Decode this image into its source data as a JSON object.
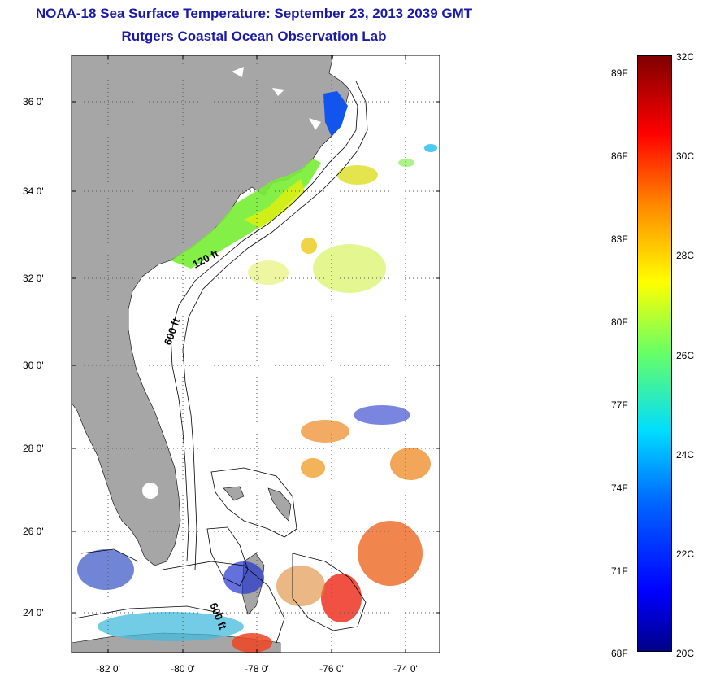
{
  "title": {
    "line1": "NOAA-18 Sea Surface Temperature:  September 23, 2013 2039 GMT",
    "line2": "Rutgers Coastal Ocean Observation Lab"
  },
  "map": {
    "lat_ticks": [
      "36 0'",
      "34 0'",
      "32 0'",
      "30 0'",
      "28 0'",
      "26 0'",
      "24 0'"
    ],
    "lon_ticks": [
      "-82 0'",
      "-80 0'",
      "-78 0'",
      "-76 0'",
      "-74 0'"
    ],
    "lat_range": [
      23,
      37
    ],
    "lon_range": [
      -83,
      -73
    ],
    "contour_labels": [
      "120 ft",
      "600 ft",
      "600 ft"
    ],
    "land_color": "#a6a6a6",
    "grid": "dotted"
  },
  "colorbar": {
    "f_labels": [
      "89F",
      "86F",
      "83F",
      "80F",
      "77F",
      "74F",
      "71F",
      "68F"
    ],
    "c_labels": [
      "32C",
      "30C",
      "28C",
      "26C",
      "24C",
      "22C",
      "20C"
    ],
    "range_c": [
      20,
      32
    ]
  }
}
